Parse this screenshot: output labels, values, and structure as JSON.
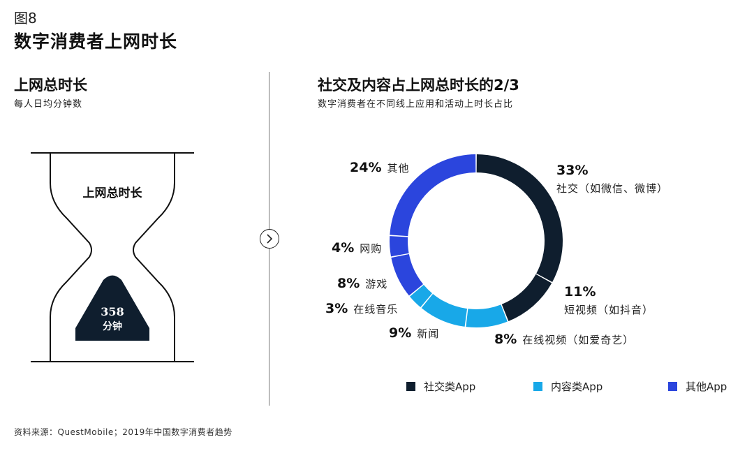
{
  "figure_label": "图8",
  "title": "数字消费者上网时长",
  "left_panel": {
    "title": "上网总时长",
    "subtitle": "每人日均分钟数",
    "hourglass_label": "上网总时长",
    "value": "358",
    "unit": "分钟"
  },
  "source": "资料来源：QuestMobile；2019年中国数字消费者趋势",
  "colors": {
    "social": "#0f1e2e",
    "content": "#18a8e8",
    "other": "#2b45dd"
  },
  "chart_data": {
    "type": "pie",
    "style": "donut",
    "title": "社交及内容占上网总时长的2/3",
    "subtitle": "数字消费者在不同线上应用和活动上时长占比",
    "slices": [
      {
        "pct": "33%",
        "label": "社交（如微信、微博）",
        "value": 33,
        "group": "social"
      },
      {
        "pct": "11%",
        "label": "短视频（如抖音）",
        "value": 11,
        "group": "social"
      },
      {
        "pct": "8%",
        "label": "在线视频（如爱奇艺）",
        "value": 8,
        "group": "content"
      },
      {
        "pct": "9%",
        "label": "新闻",
        "value": 9,
        "group": "content"
      },
      {
        "pct": "3%",
        "label": "在线音乐",
        "value": 3,
        "group": "content"
      },
      {
        "pct": "8%",
        "label": "游戏",
        "value": 8,
        "group": "other"
      },
      {
        "pct": "4%",
        "label": "网购",
        "value": 4,
        "group": "other"
      },
      {
        "pct": "24%",
        "label": "其他",
        "value": 24,
        "group": "other"
      }
    ],
    "legend": [
      {
        "label": "社交类App",
        "group": "social"
      },
      {
        "label": "内容类App",
        "group": "content"
      },
      {
        "label": "其他App",
        "group": "other"
      }
    ]
  }
}
